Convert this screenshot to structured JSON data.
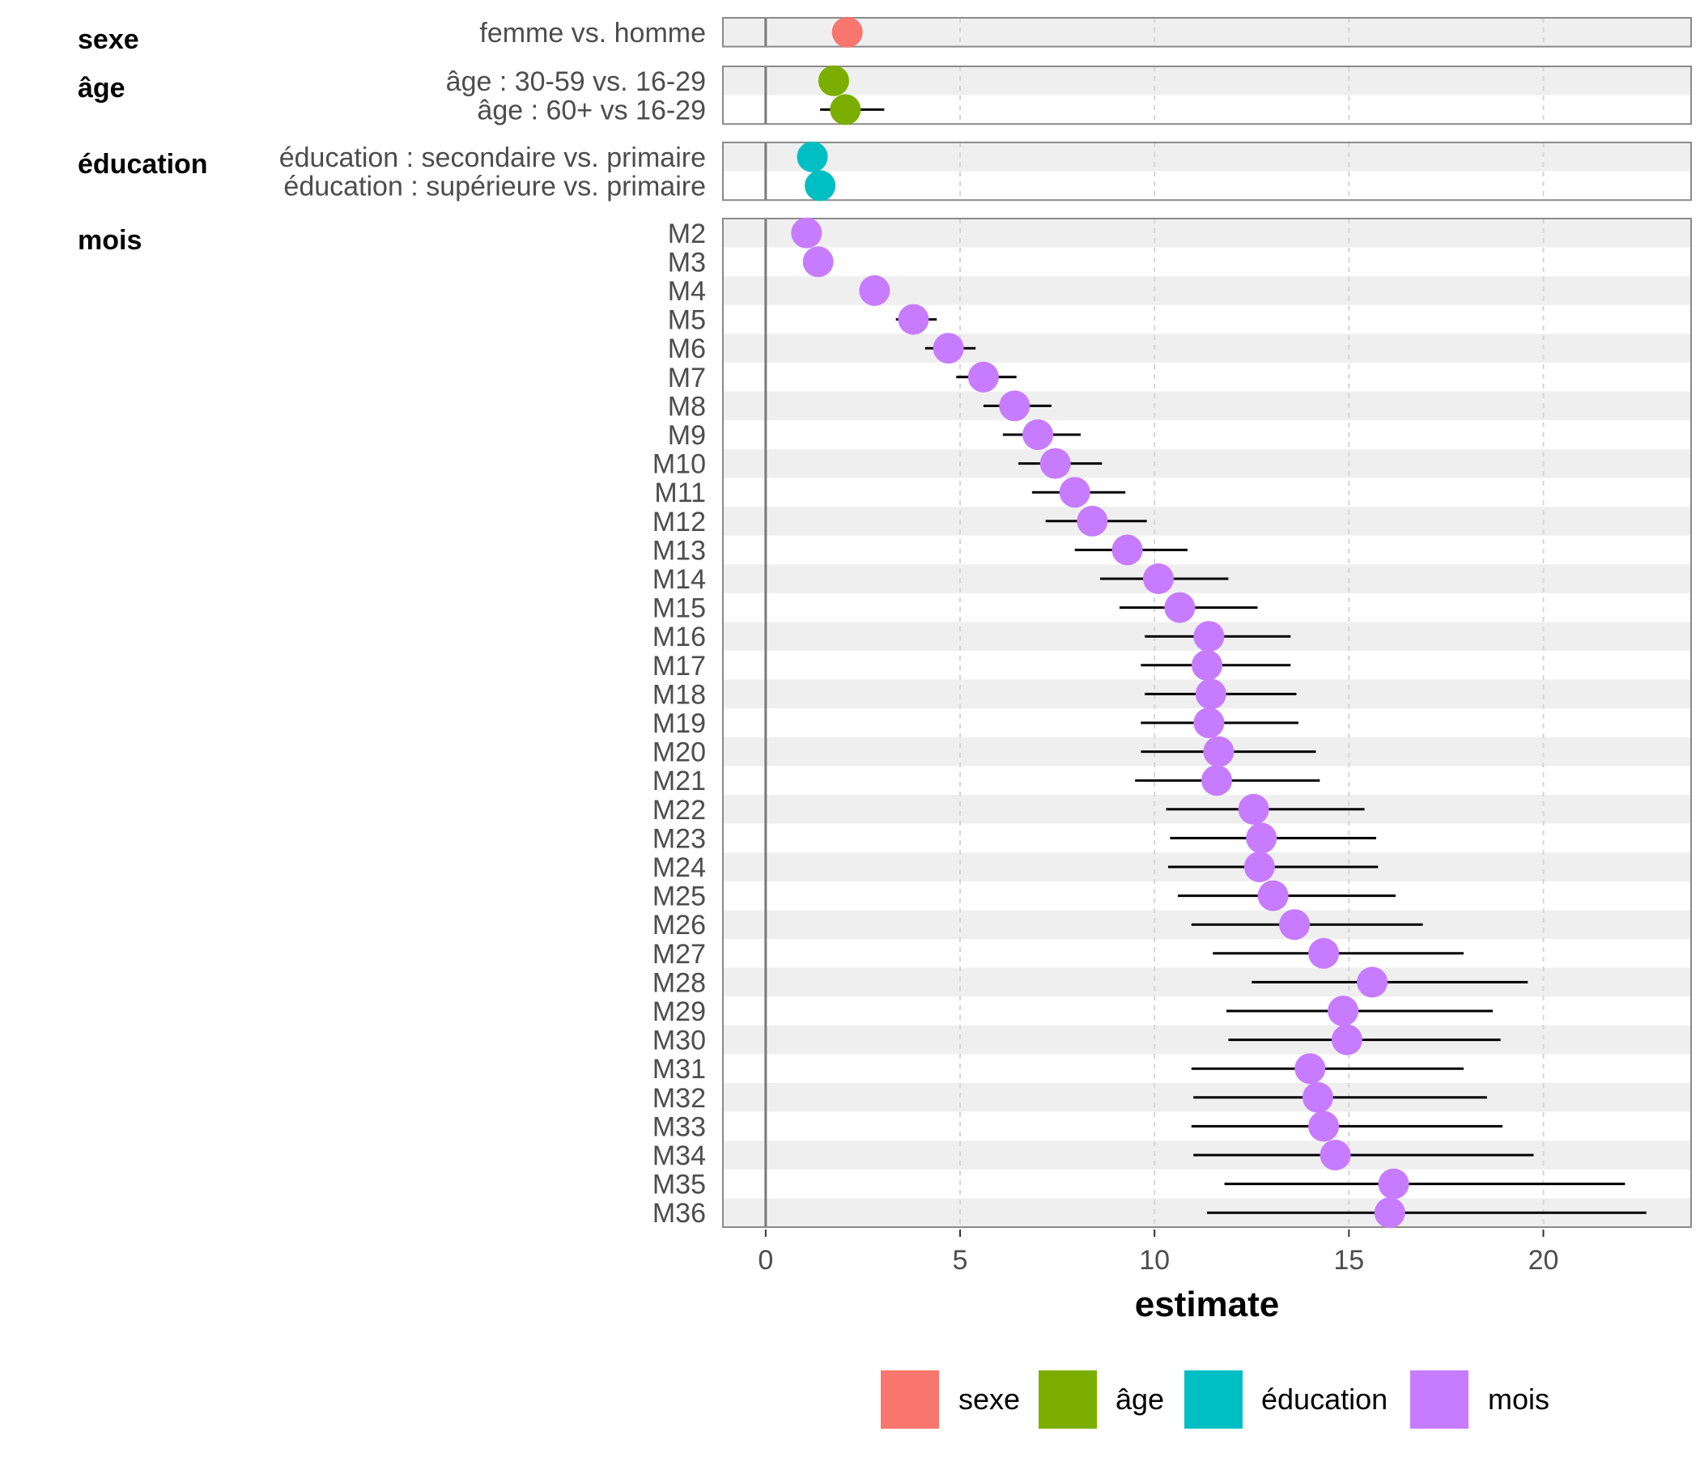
{
  "chart_data": {
    "type": "forest",
    "xlabel": "estimate",
    "xlim": [
      -1.1,
      23.8
    ],
    "xticks": [
      0,
      5,
      10,
      15,
      20
    ],
    "reference_line": 0,
    "colors": {
      "sexe": "#F8766D",
      "âge": "#7CAE00",
      "éducation": "#00BFC4",
      "mois": "#C77CFF"
    },
    "legend": [
      "sexe",
      "âge",
      "éducation",
      "mois"
    ],
    "groups": [
      {
        "name": "sexe",
        "rows": [
          {
            "label": "femme vs. homme",
            "estimate": 2.1,
            "low": 1.85,
            "high": 2.35
          }
        ]
      },
      {
        "name": "âge",
        "rows": [
          {
            "label": "âge : 30-59 vs. 16-29",
            "estimate": 1.75,
            "low": 1.5,
            "high": 2.0
          },
          {
            "label": "âge : 60+ vs 16-29",
            "estimate": 2.05,
            "low": 1.4,
            "high": 3.05
          }
        ]
      },
      {
        "name": "éducation",
        "rows": [
          {
            "label": "éducation : secondaire vs. primaire",
            "estimate": 1.2,
            "low": 0.95,
            "high": 1.45
          },
          {
            "label": "éducation : supérieure vs. primaire",
            "estimate": 1.4,
            "low": 1.15,
            "high": 1.65
          }
        ]
      },
      {
        "name": "mois",
        "rows": [
          {
            "label": "M2",
            "estimate": 1.05,
            "low": 0.9,
            "high": 1.2
          },
          {
            "label": "M3",
            "estimate": 1.35,
            "low": 1.15,
            "high": 1.55
          },
          {
            "label": "M4",
            "estimate": 2.8,
            "low": 2.5,
            "high": 3.1
          },
          {
            "label": "M5",
            "estimate": 3.8,
            "low": 3.35,
            "high": 4.4
          },
          {
            "label": "M6",
            "estimate": 4.7,
            "low": 4.1,
            "high": 5.4
          },
          {
            "label": "M7",
            "estimate": 5.6,
            "low": 4.9,
            "high": 6.45
          },
          {
            "label": "M8",
            "estimate": 6.4,
            "low": 5.6,
            "high": 7.35
          },
          {
            "label": "M9",
            "estimate": 7.0,
            "low": 6.1,
            "high": 8.1
          },
          {
            "label": "M10",
            "estimate": 7.45,
            "low": 6.5,
            "high": 8.65
          },
          {
            "label": "M11",
            "estimate": 7.95,
            "low": 6.85,
            "high": 9.25
          },
          {
            "label": "M12",
            "estimate": 8.4,
            "low": 7.2,
            "high": 9.8
          },
          {
            "label": "M13",
            "estimate": 9.3,
            "low": 7.95,
            "high": 10.85
          },
          {
            "label": "M14",
            "estimate": 10.1,
            "low": 8.6,
            "high": 11.9
          },
          {
            "label": "M15",
            "estimate": 10.65,
            "low": 9.1,
            "high": 12.65
          },
          {
            "label": "M16",
            "estimate": 11.4,
            "low": 9.75,
            "high": 13.5
          },
          {
            "label": "M17",
            "estimate": 11.35,
            "low": 9.65,
            "high": 13.5
          },
          {
            "label": "M18",
            "estimate": 11.45,
            "low": 9.75,
            "high": 13.65
          },
          {
            "label": "M19",
            "estimate": 11.4,
            "low": 9.65,
            "high": 13.7
          },
          {
            "label": "M20",
            "estimate": 11.65,
            "low": 9.65,
            "high": 14.15
          },
          {
            "label": "M21",
            "estimate": 11.6,
            "low": 9.5,
            "high": 14.25
          },
          {
            "label": "M22",
            "estimate": 12.55,
            "low": 10.3,
            "high": 15.4
          },
          {
            "label": "M23",
            "estimate": 12.75,
            "low": 10.4,
            "high": 15.7
          },
          {
            "label": "M24",
            "estimate": 12.7,
            "low": 10.35,
            "high": 15.75
          },
          {
            "label": "M25",
            "estimate": 13.05,
            "low": 10.6,
            "high": 16.2
          },
          {
            "label": "M26",
            "estimate": 13.6,
            "low": 10.95,
            "high": 16.9
          },
          {
            "label": "M27",
            "estimate": 14.35,
            "low": 11.5,
            "high": 17.95
          },
          {
            "label": "M28",
            "estimate": 15.6,
            "low": 12.5,
            "high": 19.6
          },
          {
            "label": "M29",
            "estimate": 14.85,
            "low": 11.85,
            "high": 18.7
          },
          {
            "label": "M30",
            "estimate": 14.95,
            "low": 11.9,
            "high": 18.9
          },
          {
            "label": "M31",
            "estimate": 14.0,
            "low": 10.95,
            "high": 17.95
          },
          {
            "label": "M32",
            "estimate": 14.2,
            "low": 11.0,
            "high": 18.55
          },
          {
            "label": "M33",
            "estimate": 14.35,
            "low": 10.95,
            "high": 18.95
          },
          {
            "label": "M34",
            "estimate": 14.65,
            "low": 11.0,
            "high": 19.75
          },
          {
            "label": "M35",
            "estimate": 16.15,
            "low": 11.8,
            "high": 22.1
          },
          {
            "label": "M36",
            "estimate": 16.05,
            "low": 11.35,
            "high": 22.65
          }
        ]
      }
    ]
  }
}
